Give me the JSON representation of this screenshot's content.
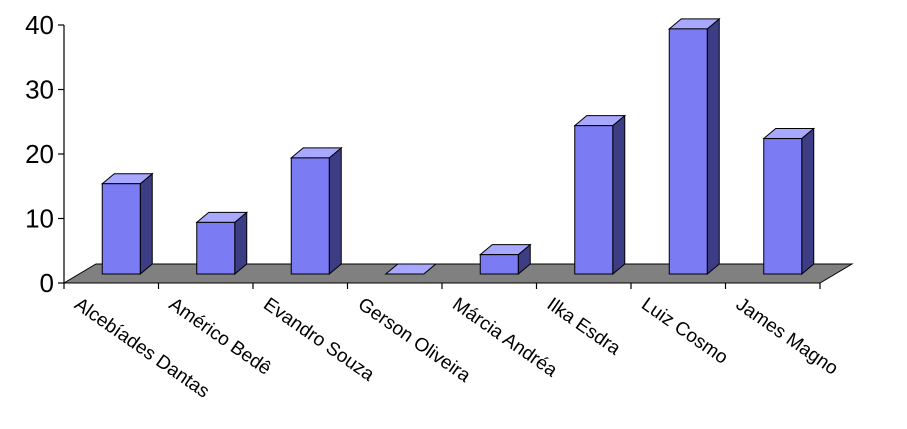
{
  "chart_data": {
    "type": "bar",
    "style": "3d-column",
    "categories": [
      "Alcebíades Dantas",
      "Américo Bedê",
      "Evandro Souza",
      "Gerson Oliveira",
      "Márcia Andréa",
      "Ilka Esdra",
      "Luiz Cosmo",
      "James Magno"
    ],
    "values": [
      14,
      8,
      18,
      0,
      3,
      23,
      38,
      21
    ],
    "yticks": [
      "0",
      "10",
      "20",
      "30",
      "40"
    ],
    "ylim": [
      0,
      40
    ],
    "title": "",
    "xlabel": "",
    "ylabel": "",
    "grid": false,
    "legend": "none"
  },
  "colors": {
    "bar_front": "#7b7bf3",
    "bar_side": "#3d3d85",
    "bar_top": "#a8a8ff",
    "floor": "#808080",
    "edge": "#000000"
  }
}
